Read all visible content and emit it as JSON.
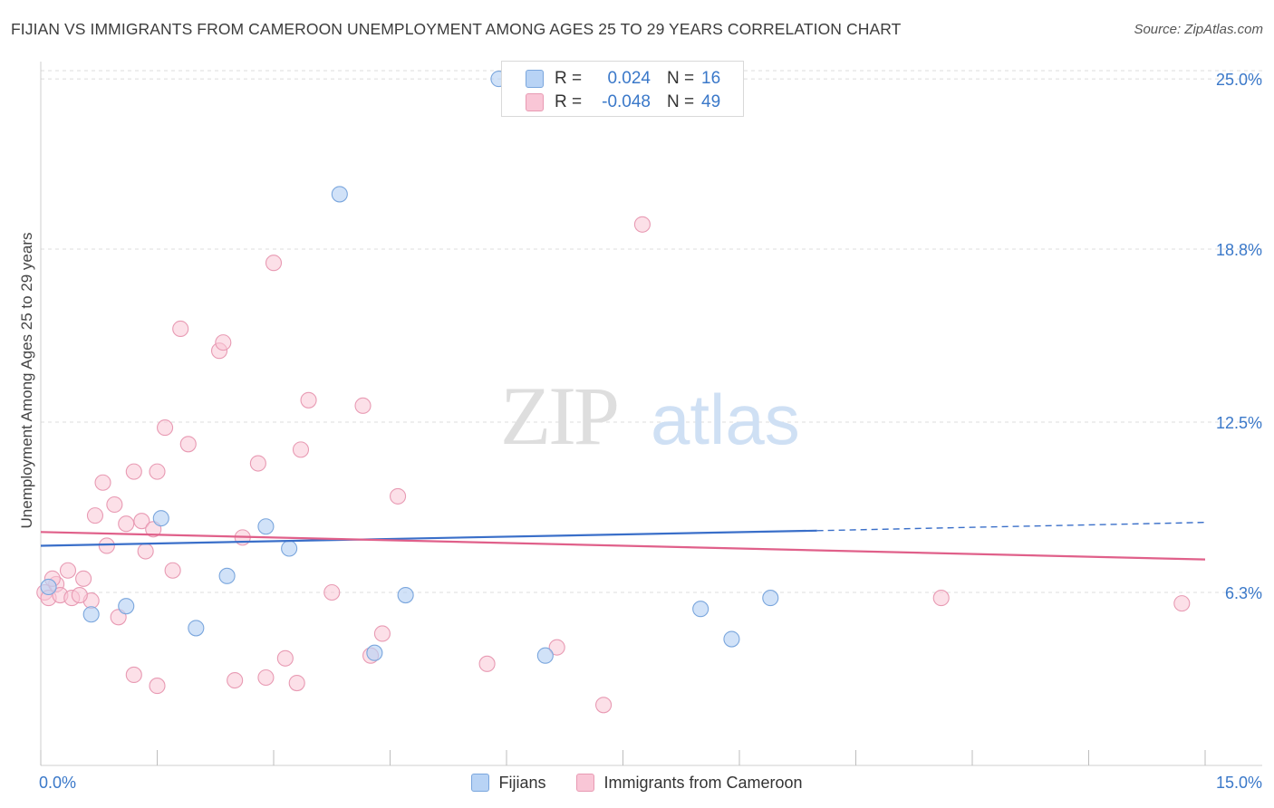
{
  "title": "FIJIAN VS IMMIGRANTS FROM CAMEROON UNEMPLOYMENT AMONG AGES 25 TO 29 YEARS CORRELATION CHART",
  "source": "Source: ZipAtlas.com",
  "watermark": {
    "zip": "ZIP",
    "atlas": "atlas"
  },
  "stats": {
    "fijians": {
      "r_label": "R =",
      "r_value": "0.024",
      "n_label": "N =",
      "n_value": "16"
    },
    "cameroon": {
      "r_label": "R =",
      "r_value": "-0.048",
      "n_label": "N =",
      "n_value": "49"
    }
  },
  "legend": {
    "fijians": "Fijians",
    "cameroon": "Immigrants from Cameroon"
  },
  "colors": {
    "fijians_fill": "#b8d3f5",
    "fijians_stroke": "#7aa6dd",
    "fijians_line": "#3a6fc9",
    "cameroon_fill": "#f9c6d6",
    "cameroon_stroke": "#e89ab3",
    "cameroon_line": "#e0608a",
    "tick_label": "#3a78c9",
    "grid": "#dcdcdc"
  },
  "chart_data": {
    "type": "scatter",
    "title": "FIJIAN VS IMMIGRANTS FROM CAMEROON UNEMPLOYMENT AMONG AGES 25 TO 29 YEARS CORRELATION CHART",
    "xlabel": "",
    "ylabel": "Unemployment Among Ages 25 to 29 years",
    "xlim": [
      0,
      15
    ],
    "ylim": [
      0,
      25.3
    ],
    "x_tick_labels": [
      "0.0%",
      "15.0%"
    ],
    "y_ticks": [
      6.3,
      12.5,
      18.8,
      25.0
    ],
    "y_tick_labels": [
      "6.3%",
      "12.5%",
      "18.8%",
      "25.0%"
    ],
    "grid": true,
    "series": [
      {
        "name": "Fijians",
        "points": [
          [
            0.1,
            6.5
          ],
          [
            0.65,
            5.5
          ],
          [
            1.1,
            5.8
          ],
          [
            1.55,
            9.0
          ],
          [
            2.0,
            5.0
          ],
          [
            2.4,
            6.9
          ],
          [
            2.9,
            8.7
          ],
          [
            3.2,
            7.9
          ],
          [
            3.85,
            20.8
          ],
          [
            4.3,
            4.1
          ],
          [
            4.7,
            6.2
          ],
          [
            5.9,
            25.0
          ],
          [
            6.5,
            4.0
          ],
          [
            8.5,
            5.7
          ],
          [
            8.9,
            4.6
          ],
          [
            9.4,
            6.1
          ]
        ],
        "trend": {
          "x": [
            0,
            10
          ],
          "y": [
            8.0,
            8.55
          ],
          "dashed_to": [
            15,
            8.85
          ]
        }
      },
      {
        "name": "Immigrants from Cameroon",
        "points": [
          [
            0.05,
            6.3
          ],
          [
            0.1,
            6.1
          ],
          [
            0.2,
            6.6
          ],
          [
            0.25,
            6.2
          ],
          [
            0.35,
            7.1
          ],
          [
            0.4,
            6.1
          ],
          [
            0.55,
            6.8
          ],
          [
            0.65,
            6.0
          ],
          [
            0.7,
            9.1
          ],
          [
            0.8,
            10.3
          ],
          [
            0.85,
            8.0
          ],
          [
            0.95,
            9.5
          ],
          [
            1.0,
            5.4
          ],
          [
            1.1,
            8.8
          ],
          [
            1.2,
            10.7
          ],
          [
            1.3,
            8.9
          ],
          [
            1.35,
            7.8
          ],
          [
            1.45,
            8.6
          ],
          [
            1.5,
            10.7
          ],
          [
            1.6,
            12.3
          ],
          [
            1.7,
            7.1
          ],
          [
            1.8,
            15.9
          ],
          [
            1.9,
            11.7
          ],
          [
            2.3,
            15.1
          ],
          [
            2.35,
            15.4
          ],
          [
            2.5,
            3.1
          ],
          [
            2.8,
            11.0
          ],
          [
            2.9,
            3.2
          ],
          [
            3.0,
            18.3
          ],
          [
            3.15,
            3.9
          ],
          [
            3.35,
            11.5
          ],
          [
            3.45,
            13.3
          ],
          [
            3.75,
            6.3
          ],
          [
            4.15,
            13.1
          ],
          [
            4.25,
            4.0
          ],
          [
            4.4,
            4.8
          ],
          [
            4.6,
            9.8
          ],
          [
            5.75,
            3.7
          ],
          [
            6.65,
            4.3
          ],
          [
            7.25,
            2.2
          ],
          [
            7.75,
            19.7
          ],
          [
            11.6,
            6.1
          ],
          [
            14.7,
            5.9
          ],
          [
            1.2,
            3.3
          ],
          [
            1.5,
            2.9
          ],
          [
            3.3,
            3.0
          ],
          [
            2.6,
            8.3
          ],
          [
            0.15,
            6.8
          ],
          [
            0.5,
            6.2
          ]
        ],
        "trend": {
          "x": [
            0,
            15
          ],
          "y": [
            8.5,
            7.5
          ]
        }
      }
    ]
  }
}
